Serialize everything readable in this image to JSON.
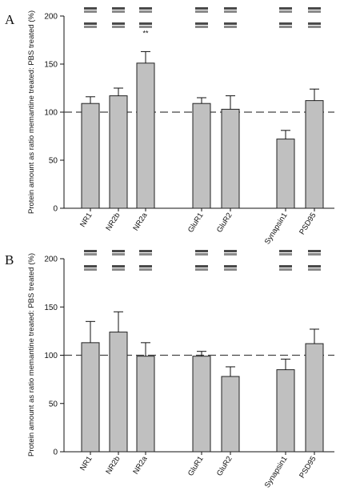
{
  "figure": {
    "colors": {
      "bar_fill": "#c0c0c0",
      "bar_stroke": "#222222",
      "reference_line": "#444444",
      "band": "#2a2a2a"
    }
  },
  "chart_data": [
    {
      "panel": "A",
      "type": "bar",
      "categories": [
        "NR1",
        "NR2b",
        "NR2a",
        "GluR1",
        "GluR2",
        "Synapsin1",
        "PSD95"
      ],
      "groups": [
        [
          0,
          1,
          2
        ],
        [
          3,
          4
        ],
        [
          5,
          6
        ]
      ],
      "values": [
        109,
        117,
        151,
        109,
        103,
        72,
        112
      ],
      "errors": [
        7,
        8,
        12,
        6,
        14,
        9,
        12
      ],
      "annotations": [
        {
          "category": "NR2a",
          "text": "**"
        }
      ],
      "ylabel": "Protein amount as ratio memantine treated: PBS treated (%)",
      "ylim": [
        0,
        200
      ],
      "yticks": [
        0,
        50,
        100,
        150,
        200
      ],
      "reference_line": 100,
      "blot_band_images": true
    },
    {
      "panel": "B",
      "type": "bar",
      "categories": [
        "NR1",
        "NR2b",
        "NR2a",
        "GluR1",
        "GluR2",
        "Synapsin1",
        "PSD95"
      ],
      "groups": [
        [
          0,
          1,
          2
        ],
        [
          3,
          4
        ],
        [
          5,
          6
        ]
      ],
      "values": [
        113,
        124,
        99,
        99,
        78,
        85,
        112
      ],
      "errors": [
        22,
        21,
        14,
        5,
        10,
        11,
        15
      ],
      "annotations": [],
      "ylabel": "Protein amount as ratio memantine treated: PBS treated (%)",
      "ylim": [
        0,
        200
      ],
      "yticks": [
        0,
        50,
        100,
        150,
        200
      ],
      "reference_line": 100,
      "blot_band_images": true
    }
  ]
}
